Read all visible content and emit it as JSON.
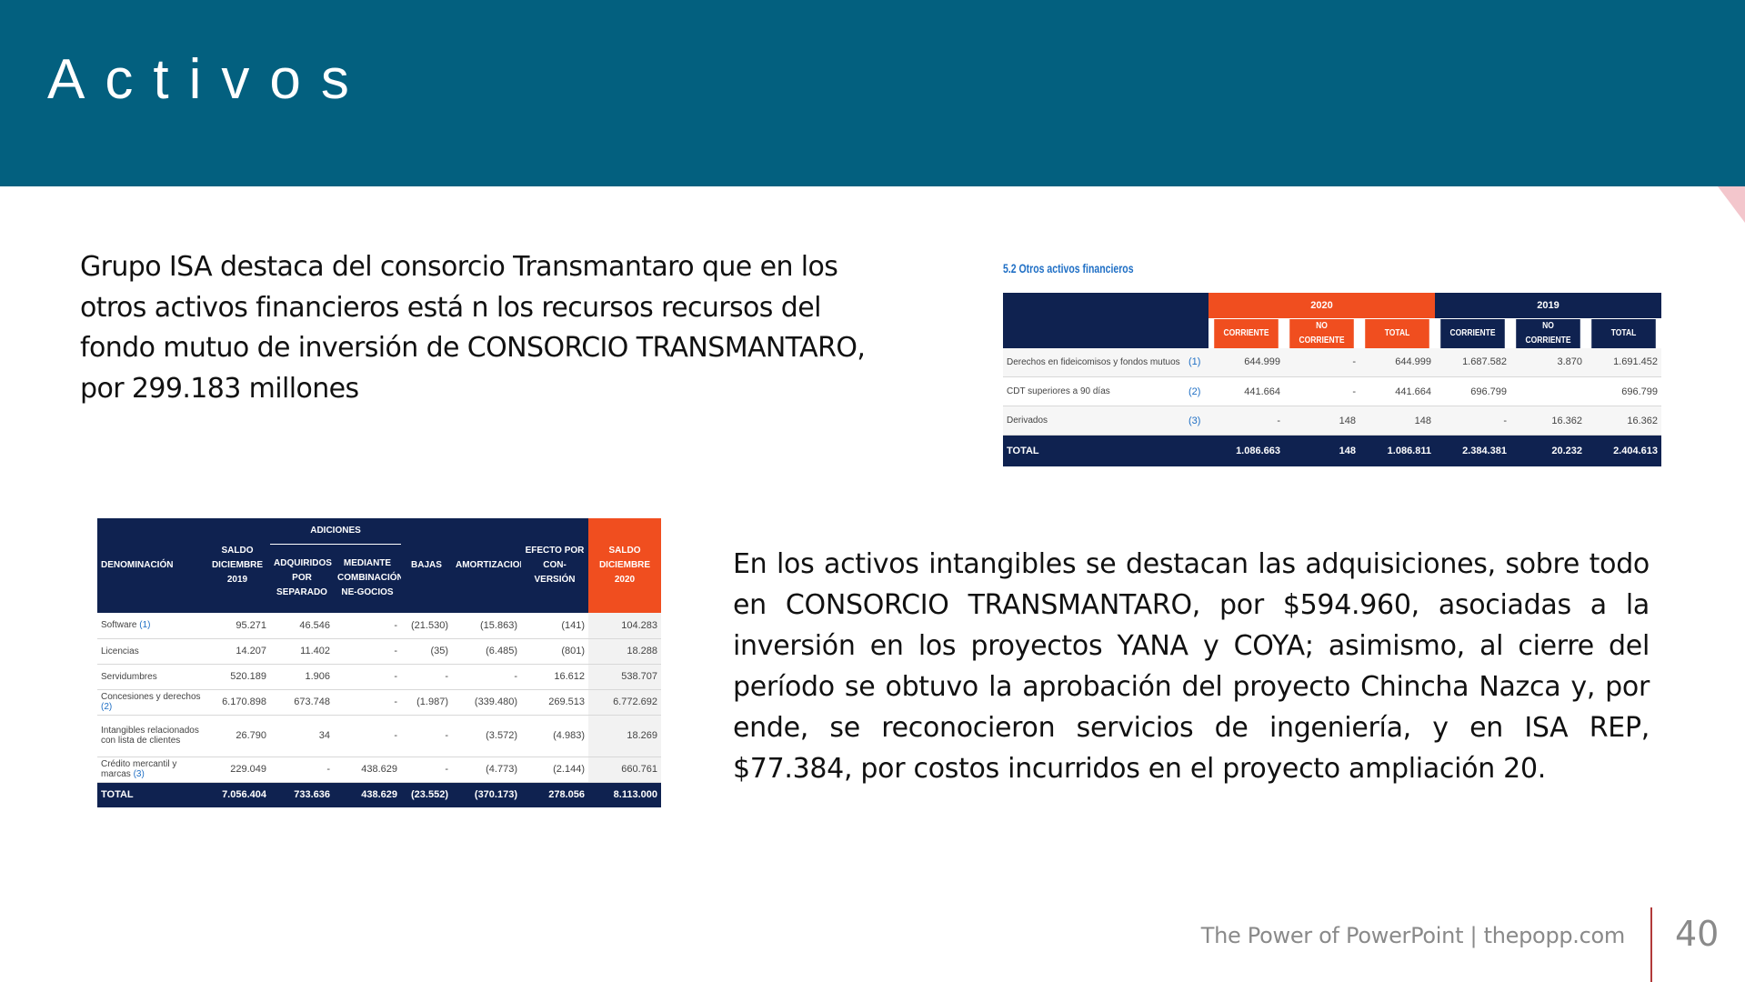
{
  "header": {
    "title": "Activos"
  },
  "paragraphs": [
    "Grupo ISA destaca del consorcio Transmantaro que en los otros activos financieros está n los recursos recursos del fondo mutuo de inversión de CONSORCIO TRANSMANTARO, por 299.183 millones",
    "En los activos intangibles se destacan las adquisiciones, sobre todo en CONSORCIO TRANSMANTARO, por $594.960, asociadas a la inversión en los proyectos YANA y COYA; asimismo, al cierre del período se obtuvo la aprobación del proyecto Chincha Nazca y, por ende, se reconocieron servicios de ingeniería, y en ISA REP, $77.384, por costos incurridos en el proyecto ampliación 20."
  ],
  "financial_table": {
    "title": "5.2 Otros activos financieros",
    "year_headers": [
      "2020",
      "2019"
    ],
    "column_headers": [
      "CORRIENTE",
      "NO CORRIENTE",
      "TOTAL",
      "CORRIENTE",
      "NO CORRIENTE",
      "TOTAL"
    ],
    "rows": [
      {
        "label": "Derechos en fideicomisos y fondos mutuos",
        "note": "(1)",
        "cells": [
          "644.999",
          "-",
          "644.999",
          "1.687.582",
          "3.870",
          "1.691.452"
        ]
      },
      {
        "label": "CDT superiores a 90 días",
        "note": "(2)",
        "cells": [
          "441.664",
          "-",
          "441.664",
          "696.799",
          null,
          "696.799"
        ]
      },
      {
        "label": "Derivados",
        "note": "(3)",
        "cells": [
          "-",
          "148",
          "148",
          "-",
          "16.362",
          "16.362"
        ]
      }
    ],
    "total": {
      "label": "TOTAL",
      "cells": [
        "1.086.663",
        "148",
        "1.086.811",
        "2.384.381",
        "20.232",
        "2.404.613"
      ]
    }
  },
  "intangibles_table": {
    "group_header": "ADICIONES",
    "column_headers": [
      "DENOMINACIÓN",
      "SALDO DICIEMBRE 2019",
      "ADQUIRIDOS POR SEPARADO",
      "MEDIANTE COMBINACIÓN NE-GOCIOS",
      "BAJAS",
      "AMORTIZACIONES",
      "EFECTO POR CON-VERSIÓN",
      "SALDO DICIEMBRE 2020"
    ],
    "rows": [
      {
        "label": "Software",
        "note": "(1)",
        "cells": [
          "95.271",
          "46.546",
          "-",
          "(21.530)",
          "(15.863)",
          "(141)",
          "104.283"
        ]
      },
      {
        "label": "Licencias",
        "note": null,
        "cells": [
          "14.207",
          "11.402",
          "-",
          "(35)",
          "(6.485)",
          "(801)",
          "18.288"
        ]
      },
      {
        "label": "Servidumbres",
        "note": null,
        "cells": [
          "520.189",
          "1.906",
          "-",
          "-",
          "-",
          "16.612",
          "538.707"
        ]
      },
      {
        "label": "Concesiones y derechos",
        "note": "(2)",
        "cells": [
          "6.170.898",
          "673.748",
          "-",
          "(1.987)",
          "(339.480)",
          "269.513",
          "6.772.692"
        ]
      },
      {
        "label": "Intangibles relacionados con lista de clientes",
        "note": null,
        "cells": [
          "26.790",
          "34",
          "-",
          "-",
          "(3.572)",
          "(4.983)",
          "18.269"
        ]
      },
      {
        "label": "Crédito mercantil y marcas",
        "note": "(3)",
        "cells": [
          "229.049",
          "-",
          "438.629",
          "-",
          "(4.773)",
          "(2.144)",
          "660.761"
        ]
      }
    ],
    "total": {
      "label": "TOTAL",
      "cells": [
        "7.056.404",
        "733.636",
        "438.629",
        "(23.552)",
        "(370.173)",
        "278.056",
        "8.113.000"
      ]
    }
  },
  "footer": {
    "text": "The Power of PowerPoint | thepopp.com",
    "page_number": "40"
  }
}
